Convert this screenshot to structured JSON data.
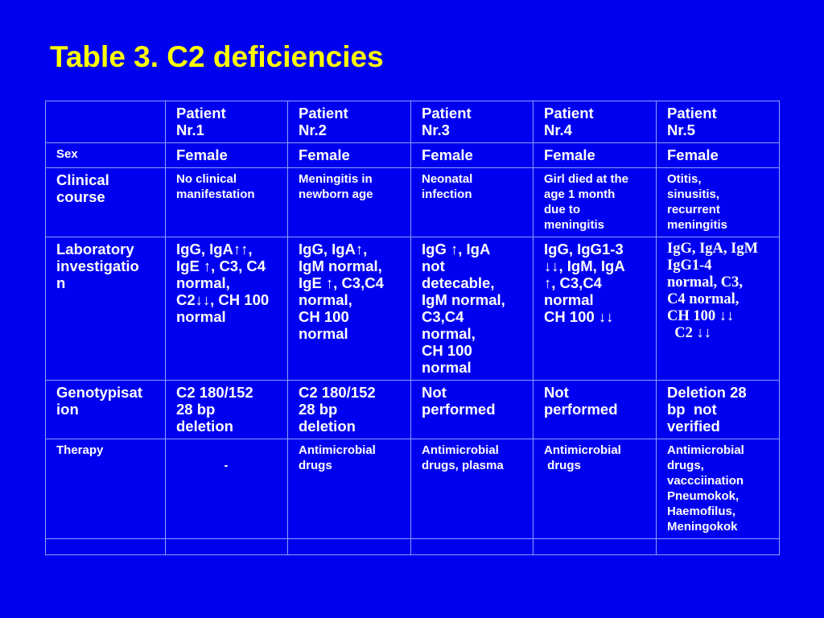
{
  "title": "Table 3.  C2 deficiencies",
  "colors": {
    "background": "#0000f0",
    "title": "#ffff00",
    "text": "#ffffff",
    "grid": "#8fa0ff"
  },
  "table": {
    "header": [
      "",
      "Patient\nNr.1",
      "Patient\nNr.2",
      "Patient\nNr.3",
      "Patient\nNr.4",
      "Patient\nNr.5"
    ],
    "rows": [
      {
        "label": "Sex",
        "cells": [
          "Female",
          "Female",
          "Female",
          "Female",
          "Female"
        ]
      },
      {
        "label": "Clinical\ncourse",
        "cells": [
          "No clinical\nmanifestation",
          "Meningitis in\nnewborn age",
          "Neonatal\ninfection",
          "Girl died at the\nage 1 month\ndue to\nmeningitis",
          "Otitis,\nsinusitis,\nrecurrent\nmeningitis"
        ]
      },
      {
        "label": "Laboratory\ninvestigatio\nn",
        "cells": [
          "IgG, IgA↑↑,\nIgE ↑, C3, C4\nnormal,\nC2↓↓, CH 100\nnormal",
          "IgG, IgA↑,\nIgM normal,\nIgE ↑, C3,C4\nnormal,\nCH 100\nnormal",
          "IgG ↑, IgA\nnot\ndetecable,\nIgM normal,\nC3,C4\nnormal,\nCH 100\nnormal",
          "IgG, IgG1-3\n↓↓, IgM, IgA\n↑, C3,C4\nnormal\nCH 100 ↓↓",
          "IgG, IgA, IgM\nIgG1-4\nnormal, C3,\nC4 normal,\nCH 100 ↓↓\n  C2 ↓↓"
        ]
      },
      {
        "label": "Genotypisat\nion",
        "cells": [
          "C2 180/152\n28 bp\ndeletion",
          "C2 180/152\n28 bp\ndeletion",
          "Not\nperformed",
          "Not\nperformed",
          "Deletion 28\nbp  not\nverified"
        ]
      },
      {
        "label": "Therapy",
        "cells": [
          "\n-",
          "Antimicrobial\ndrugs",
          "Antimicrobial\ndrugs, plasma",
          "Antimicrobial\n drugs",
          "Antimicrobial\ndrugs,\nvaccciination\nPneumokok,\nHaemofilus,\nMeningokok"
        ]
      },
      {
        "label": "",
        "cells": [
          "",
          "",
          "",
          "",
          ""
        ]
      }
    ]
  }
}
